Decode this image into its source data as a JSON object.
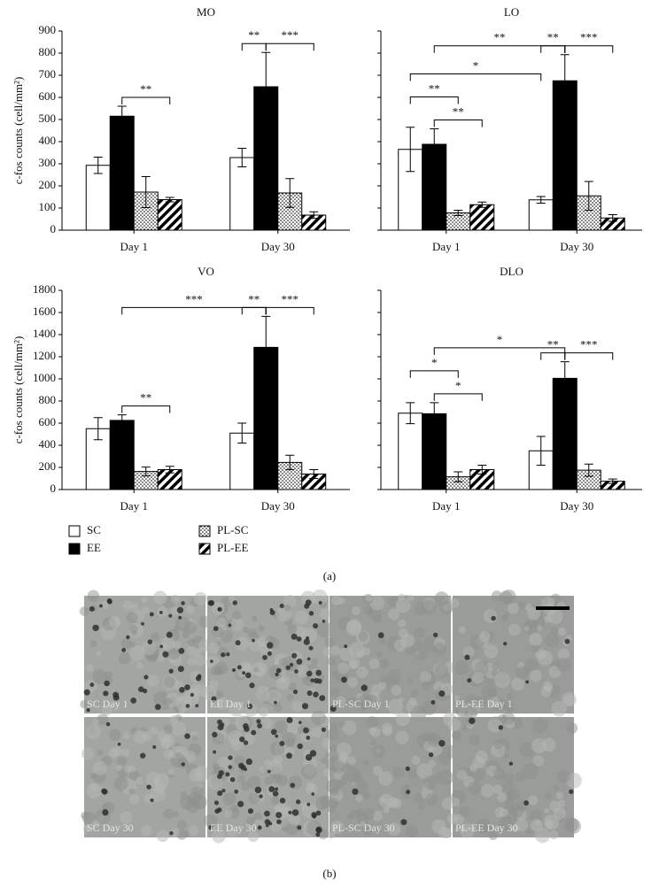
{
  "chart_data": [
    {
      "type": "bar",
      "title": "MO",
      "categories": [
        "Day 1",
        "Day 30"
      ],
      "ylabel": "c-fos counts (cell/mm²)",
      "ylim": [
        0,
        900
      ],
      "yticks": [
        0,
        100,
        200,
        300,
        400,
        500,
        600,
        700,
        800,
        900
      ],
      "show_ytick_labels": true,
      "series": [
        {
          "name": "SC",
          "color": "#ffffff",
          "pattern": "solid",
          "values": [
            293,
            328
          ],
          "errors": [
            37,
            42
          ]
        },
        {
          "name": "EE",
          "color": "#000000",
          "pattern": "solid",
          "values": [
            515,
            648
          ],
          "errors": [
            45,
            155
          ]
        },
        {
          "name": "PL-SC",
          "color": "#ffffff",
          "pattern": "dots",
          "values": [
            172,
            168
          ],
          "errors": [
            70,
            65
          ]
        },
        {
          "name": "PL-EE",
          "color": "#ffffff",
          "pattern": "hatch",
          "values": [
            138,
            68
          ],
          "errors": [
            10,
            15
          ]
        }
      ],
      "brackets": [
        {
          "from": [
            0,
            1
          ],
          "to": [
            0,
            3
          ],
          "label": "**"
        },
        {
          "from": [
            1,
            0
          ],
          "to": [
            1,
            1
          ],
          "label": "**"
        },
        {
          "from": [
            1,
            1
          ],
          "to": [
            1,
            3
          ],
          "label": "***"
        }
      ]
    },
    {
      "type": "bar",
      "title": "LO",
      "categories": [
        "Day 1",
        "Day 30"
      ],
      "ylim": [
        0,
        900
      ],
      "yticks": [
        0,
        100,
        200,
        300,
        400,
        500,
        600,
        700,
        800,
        900
      ],
      "show_ytick_labels": false,
      "series": [
        {
          "name": "SC",
          "color": "#ffffff",
          "pattern": "solid",
          "values": [
            365,
            137
          ],
          "errors": [
            100,
            15
          ]
        },
        {
          "name": "EE",
          "color": "#000000",
          "pattern": "solid",
          "values": [
            388,
            675
          ],
          "errors": [
            70,
            118
          ]
        },
        {
          "name": "PL-SC",
          "color": "#ffffff",
          "pattern": "dots",
          "values": [
            78,
            155
          ],
          "errors": [
            12,
            65
          ]
        },
        {
          "name": "PL-EE",
          "color": "#ffffff",
          "pattern": "hatch",
          "values": [
            115,
            55
          ],
          "errors": [
            12,
            15
          ]
        }
      ],
      "brackets": [
        {
          "from": [
            0,
            1
          ],
          "to": [
            0,
            3
          ],
          "label": "**"
        },
        {
          "from": [
            0,
            0
          ],
          "to": [
            0,
            2
          ],
          "label": "**"
        },
        {
          "from": [
            0,
            0
          ],
          "to": [
            1,
            0
          ],
          "label": "*"
        },
        {
          "from": [
            1,
            1
          ],
          "to": [
            1,
            3
          ],
          "label": "***"
        },
        {
          "from": [
            1,
            0
          ],
          "to": [
            1,
            1
          ],
          "label": "**"
        },
        {
          "from": [
            0,
            1
          ],
          "to": [
            1,
            1
          ],
          "label": "**"
        }
      ]
    },
    {
      "type": "bar",
      "title": "VO",
      "categories": [
        "Day 1",
        "Day 30"
      ],
      "ylabel": "c-fos counts (cell/mm²)",
      "ylim": [
        0,
        1800
      ],
      "yticks": [
        0,
        200,
        400,
        600,
        800,
        1000,
        1200,
        1400,
        1600,
        1800
      ],
      "show_ytick_labels": true,
      "series": [
        {
          "name": "SC",
          "color": "#ffffff",
          "pattern": "solid",
          "values": [
            550,
            510
          ],
          "errors": [
            100,
            90
          ]
        },
        {
          "name": "EE",
          "color": "#000000",
          "pattern": "solid",
          "values": [
            625,
            1285
          ],
          "errors": [
            50,
            280
          ]
        },
        {
          "name": "PL-SC",
          "color": "#ffffff",
          "pattern": "dots",
          "values": [
            163,
            245
          ],
          "errors": [
            40,
            65
          ]
        },
        {
          "name": "PL-EE",
          "color": "#ffffff",
          "pattern": "hatch",
          "values": [
            180,
            140
          ],
          "errors": [
            30,
            40
          ]
        }
      ],
      "brackets": [
        {
          "from": [
            0,
            1
          ],
          "to": [
            0,
            3
          ],
          "label": "**"
        },
        {
          "from": [
            1,
            0
          ],
          "to": [
            1,
            1
          ],
          "label": "**"
        },
        {
          "from": [
            1,
            1
          ],
          "to": [
            1,
            3
          ],
          "label": "***"
        },
        {
          "from": [
            0,
            1
          ],
          "to": [
            1,
            1
          ],
          "label": "***"
        }
      ]
    },
    {
      "type": "bar",
      "title": "DLO",
      "categories": [
        "Day 1",
        "Day 30"
      ],
      "ylim": [
        0,
        1800
      ],
      "yticks": [
        0,
        200,
        400,
        600,
        800,
        1000,
        1200,
        1400,
        1600,
        1800
      ],
      "show_ytick_labels": false,
      "series": [
        {
          "name": "SC",
          "color": "#ffffff",
          "pattern": "solid",
          "values": [
            690,
            350
          ],
          "errors": [
            95,
            130
          ]
        },
        {
          "name": "EE",
          "color": "#000000",
          "pattern": "solid",
          "values": [
            685,
            1005
          ],
          "errors": [
            100,
            150
          ]
        },
        {
          "name": "PL-SC",
          "color": "#ffffff",
          "pattern": "dots",
          "values": [
            115,
            175
          ],
          "errors": [
            45,
            55
          ]
        },
        {
          "name": "PL-EE",
          "color": "#ffffff",
          "pattern": "hatch",
          "values": [
            180,
            75
          ],
          "errors": [
            40,
            20
          ]
        }
      ],
      "brackets": [
        {
          "from": [
            0,
            1
          ],
          "to": [
            0,
            3
          ],
          "label": "*"
        },
        {
          "from": [
            0,
            0
          ],
          "to": [
            0,
            2
          ],
          "label": "*"
        },
        {
          "from": [
            1,
            0
          ],
          "to": [
            1,
            1
          ],
          "label": "**"
        },
        {
          "from": [
            1,
            1
          ],
          "to": [
            1,
            3
          ],
          "label": "***"
        },
        {
          "from": [
            0,
            1
          ],
          "to": [
            1,
            1
          ],
          "label": "*"
        }
      ]
    }
  ],
  "figure": {
    "panel_labels": [
      "(a)",
      "(b)"
    ],
    "micrographs": [
      "SC Day 1",
      "EE Day 1",
      "PL-SC Day 1",
      "PL-EE Day 1",
      "SC Day 30",
      "EE Day 30",
      "PL-SC Day 30",
      "PL-EE Day 30"
    ]
  }
}
